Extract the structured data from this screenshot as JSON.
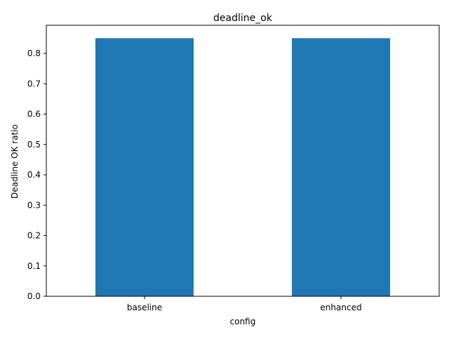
{
  "chart_data": {
    "type": "bar",
    "title": "deadline_ok",
    "xlabel": "config",
    "ylabel": "Deadline OK ratio",
    "categories": [
      "baseline",
      "enhanced"
    ],
    "values": [
      0.85,
      0.85
    ],
    "ylim": [
      0,
      0.8925
    ],
    "yticks": [
      0.0,
      0.1,
      0.2,
      0.3,
      0.4,
      0.5,
      0.6,
      0.7,
      0.8
    ],
    "ytick_labels": [
      "0.0",
      "0.1",
      "0.2",
      "0.3",
      "0.4",
      "0.5",
      "0.6",
      "0.7",
      "0.8"
    ],
    "bar_color": "#1f77b4",
    "grid": false,
    "legend": false
  }
}
